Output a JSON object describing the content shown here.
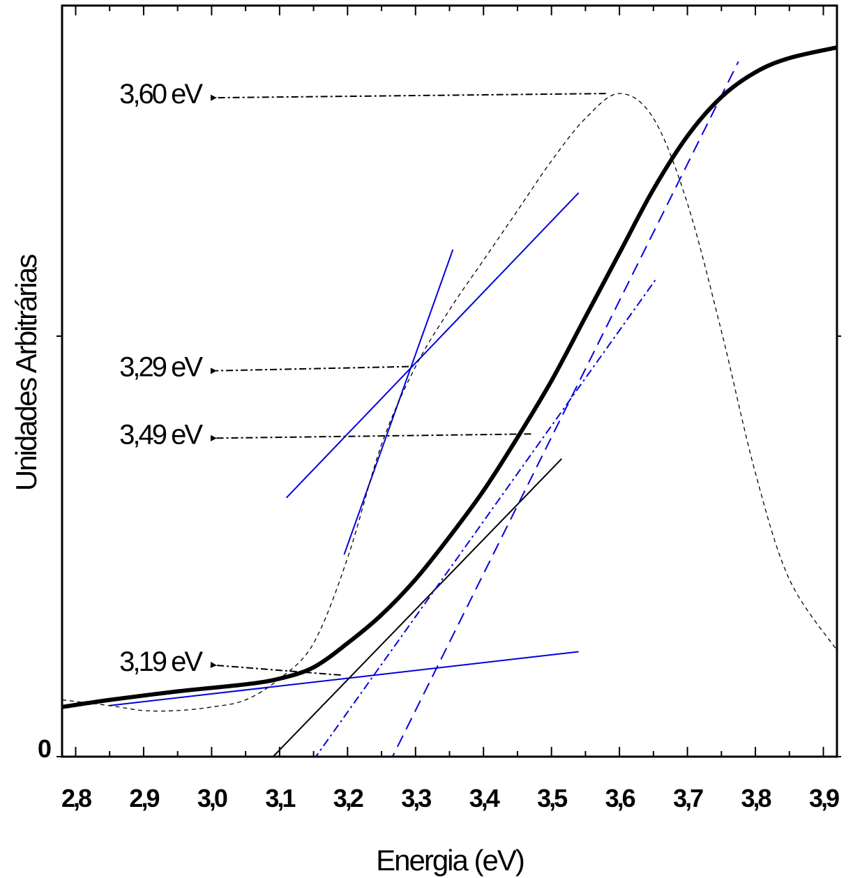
{
  "chart_data": {
    "type": "line",
    "title": "",
    "xlabel": "Energia (eV)",
    "ylabel": "Unidades Arbitrárias",
    "xlim": [
      2.78,
      3.92
    ],
    "ylim": [
      0,
      1.0
    ],
    "x_tick_labels": [
      "2,8",
      "2,9",
      "3,0",
      "3,1",
      "3,2",
      "3,3",
      "3,4",
      "3,5",
      "3,6",
      "3,7",
      "3,8",
      "3,9"
    ],
    "x_ticks": [
      2.8,
      2.9,
      3.0,
      3.1,
      3.2,
      3.3,
      3.4,
      3.5,
      3.6,
      3.7,
      3.8,
      3.9
    ],
    "y_tick_label": "0",
    "grid": false,
    "legend": "none",
    "colors": {
      "data": "#000000",
      "tangent_blue": "#0000dd",
      "tangent_black": "#000000"
    },
    "series": [
      {
        "style": "thick-solid",
        "x": [
          2.78,
          2.85,
          2.95,
          3.05,
          3.1,
          3.15,
          3.2,
          3.25,
          3.3,
          3.35,
          3.4,
          3.45,
          3.5,
          3.55,
          3.6,
          3.65,
          3.7,
          3.75,
          3.8,
          3.85,
          3.92
        ],
        "y": [
          0.07,
          0.08,
          0.092,
          0.102,
          0.11,
          0.126,
          0.16,
          0.2,
          0.25,
          0.31,
          0.375,
          0.45,
          0.53,
          0.62,
          0.71,
          0.8,
          0.875,
          0.93,
          0.965,
          0.985,
          1.0
        ]
      },
      {
        "style": "thin-dashed",
        "x": [
          2.78,
          2.85,
          2.9,
          2.95,
          3.0,
          3.05,
          3.1,
          3.15,
          3.2,
          3.25,
          3.3,
          3.35,
          3.4,
          3.45,
          3.5,
          3.55,
          3.6,
          3.65,
          3.7,
          3.75,
          3.8,
          3.85,
          3.92
        ],
        "y": [
          0.08,
          0.072,
          0.065,
          0.065,
          0.07,
          0.08,
          0.11,
          0.16,
          0.28,
          0.44,
          0.55,
          0.63,
          0.7,
          0.77,
          0.84,
          0.9,
          0.935,
          0.9,
          0.78,
          0.6,
          0.4,
          0.25,
          0.15
        ]
      }
    ],
    "tangent_lines": [
      {
        "color": "blue",
        "style": "solid",
        "x": [
          2.85,
          3.54
        ],
        "y": [
          0.072,
          0.148
        ]
      },
      {
        "color": "blue",
        "style": "solid",
        "x": [
          3.11,
          3.54
        ],
        "y": [
          0.365,
          0.795
        ]
      },
      {
        "color": "blue",
        "style": "solid",
        "x": [
          3.195,
          3.355
        ],
        "y": [
          0.285,
          0.715
        ]
      },
      {
        "color": "black",
        "style": "solid",
        "x": [
          3.055,
          3.515
        ],
        "y": [
          -0.035,
          0.42
        ]
      },
      {
        "color": "blue",
        "style": "dash-dot",
        "x": [
          3.105,
          3.655
        ],
        "y": [
          -0.065,
          0.675
        ]
      },
      {
        "color": "blue",
        "style": "dashed",
        "x": [
          3.235,
          3.775
        ],
        "y": [
          -0.06,
          0.98
        ]
      }
    ],
    "annotations": [
      {
        "text": "3,60 eV",
        "value": 3.6,
        "arrow_from": {
          "x": 3.58,
          "y": 0.935
        }
      },
      {
        "text": "3,29 eV",
        "value": 3.29,
        "arrow_from": {
          "x": 3.29,
          "y": 0.55
        }
      },
      {
        "text": "3,49 eV",
        "value": 3.49,
        "arrow_from": {
          "x": 3.47,
          "y": 0.455
        }
      },
      {
        "text": "3,19 eV",
        "value": 3.19,
        "arrow_from": {
          "x": 3.19,
          "y": 0.115
        }
      }
    ]
  }
}
